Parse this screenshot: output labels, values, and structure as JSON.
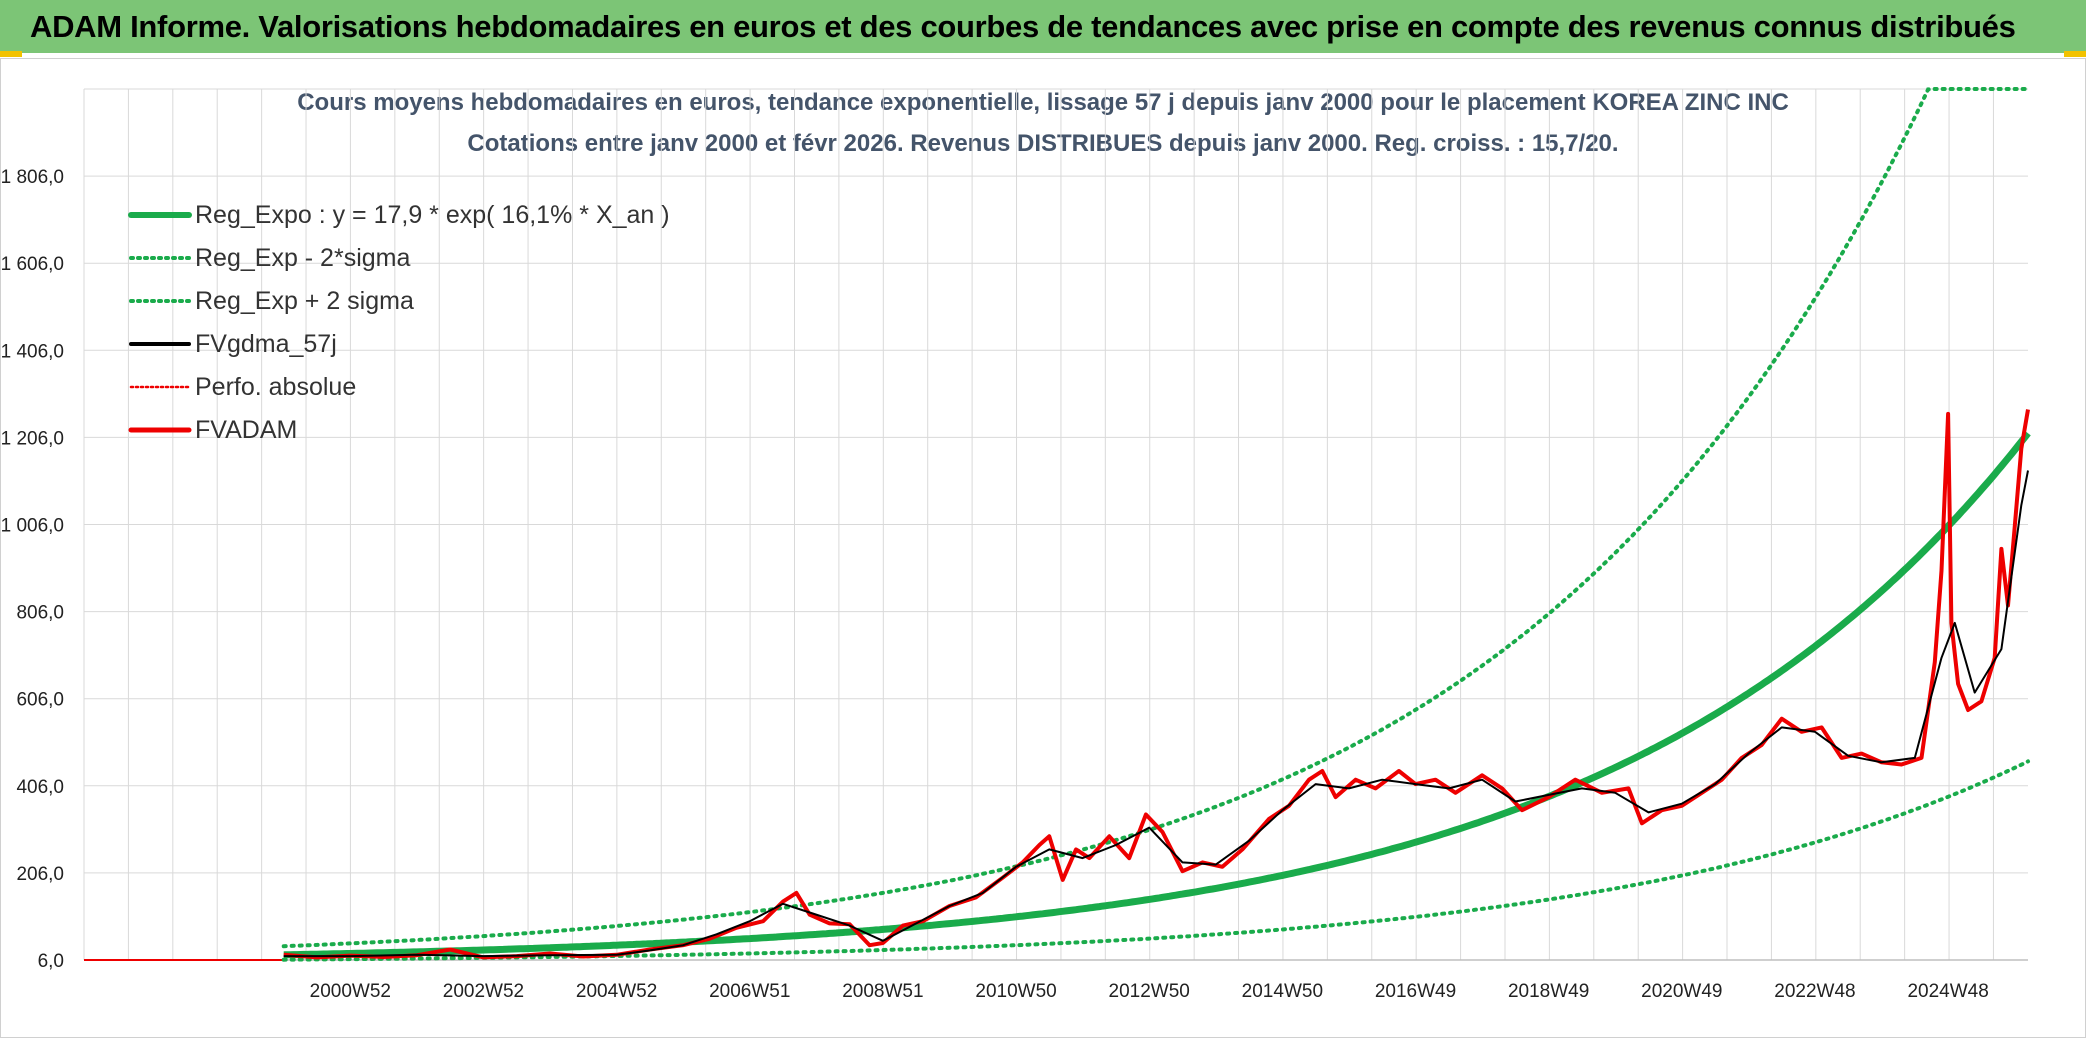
{
  "header": {
    "title": "ADAM Informe. Valorisations hebdomadaires en euros et des courbes de tendances avec prise en compte des revenus connus distribués"
  },
  "colors": {
    "header_bg": "#7cc576",
    "trend_green": "#1aab4b",
    "price_red": "#ee0000",
    "ma_black": "#000000",
    "grid": "#d9d9d9"
  },
  "chart_data": {
    "type": "line",
    "title_lines": [
      "Cours moyens hebdomadaires en euros, tendance exponentielle, lissage 57 j depuis janv 2000 pour le placement KOREA ZINC INC",
      "Cotations entre janv 2000 et févr 2026. Revenus DISTRIBUES depuis janv 2000. Reg. croiss. : 15,7/20."
    ],
    "x_range": [
      1997.0,
      2026.2
    ],
    "y_range": [
      6,
      2006
    ],
    "y_ticks": [
      "6,0",
      "206,0",
      "406,0",
      "606,0",
      "806,0",
      "1 006,0",
      "1 206,0",
      "1 406,0",
      "1 606,0",
      "1 806,0"
    ],
    "y_tick_values": [
      6,
      206,
      406,
      606,
      806,
      1006,
      1206,
      1406,
      1606,
      1806
    ],
    "x_ticks": [
      "2000W52",
      "2002W52",
      "2004W52",
      "2006W51",
      "2008W51",
      "2010W50",
      "2012W50",
      "2014W50",
      "2016W49",
      "2018W49",
      "2020W49",
      "2022W48",
      "2024W48"
    ],
    "x_tick_years": [
      2001.0,
      2003.0,
      2005.0,
      2007.0,
      2009.0,
      2011.0,
      2013.0,
      2015.0,
      2017.0,
      2019.0,
      2021.0,
      2023.0,
      2025.0
    ],
    "grid": true,
    "legend_position": "top-left",
    "legend": [
      {
        "label": "Reg_Expo : y = 17,9 * exp( 16,1% *  X_an )",
        "style": "thick-green"
      },
      {
        "label": "Reg_Exp - 2*sigma",
        "style": "dotted-green"
      },
      {
        "label": "Reg_Exp + 2 sigma",
        "style": "dotted-green"
      },
      {
        "label": "FVgdma_57j",
        "style": "black"
      },
      {
        "label": "Perfo. absolue",
        "style": "dotted-red"
      },
      {
        "label": "FVADAM",
        "style": "thick-red"
      }
    ],
    "regression": {
      "a": 17.9,
      "b": 0.161,
      "x_start": 2000.0
    },
    "band_lower_factor": 0.38,
    "band_upper_factor": 2.1,
    "trend_start": 2000.0,
    "flat_line": {
      "x": [
        1997.0,
        2000.0
      ],
      "y": [
        6,
        6
      ]
    },
    "fvadam_points": [
      [
        2000.0,
        18
      ],
      [
        2000.5,
        12
      ],
      [
        2001.0,
        16
      ],
      [
        2001.5,
        13
      ],
      [
        2002.0,
        17
      ],
      [
        2002.5,
        30
      ],
      [
        2003.0,
        12
      ],
      [
        2003.5,
        15
      ],
      [
        2004.0,
        21
      ],
      [
        2004.5,
        14
      ],
      [
        2005.0,
        18
      ],
      [
        2005.5,
        30
      ],
      [
        2006.0,
        40
      ],
      [
        2006.4,
        55
      ],
      [
        2006.8,
        80
      ],
      [
        2007.2,
        95
      ],
      [
        2007.5,
        140
      ],
      [
        2007.7,
        160
      ],
      [
        2007.9,
        110
      ],
      [
        2008.2,
        90
      ],
      [
        2008.5,
        88
      ],
      [
        2008.8,
        40
      ],
      [
        2009.0,
        45
      ],
      [
        2009.3,
        85
      ],
      [
        2009.6,
        95
      ],
      [
        2010.0,
        130
      ],
      [
        2010.4,
        150
      ],
      [
        2010.8,
        195
      ],
      [
        2011.1,
        230
      ],
      [
        2011.35,
        270
      ],
      [
        2011.5,
        290
      ],
      [
        2011.7,
        190
      ],
      [
        2011.9,
        260
      ],
      [
        2012.1,
        240
      ],
      [
        2012.4,
        290
      ],
      [
        2012.7,
        240
      ],
      [
        2012.95,
        340
      ],
      [
        2013.2,
        300
      ],
      [
        2013.5,
        210
      ],
      [
        2013.8,
        230
      ],
      [
        2014.1,
        220
      ],
      [
        2014.4,
        260
      ],
      [
        2014.8,
        330
      ],
      [
        2015.1,
        360
      ],
      [
        2015.4,
        420
      ],
      [
        2015.6,
        440
      ],
      [
        2015.8,
        380
      ],
      [
        2016.1,
        420
      ],
      [
        2016.4,
        400
      ],
      [
        2016.75,
        440
      ],
      [
        2017.0,
        410
      ],
      [
        2017.3,
        420
      ],
      [
        2017.6,
        390
      ],
      [
        2018.0,
        430
      ],
      [
        2018.3,
        400
      ],
      [
        2018.6,
        350
      ],
      [
        2019.0,
        380
      ],
      [
        2019.4,
        420
      ],
      [
        2019.8,
        390
      ],
      [
        2020.2,
        400
      ],
      [
        2020.4,
        320
      ],
      [
        2020.7,
        350
      ],
      [
        2021.0,
        360
      ],
      [
        2021.3,
        390
      ],
      [
        2021.6,
        420
      ],
      [
        2021.9,
        470
      ],
      [
        2022.2,
        500
      ],
      [
        2022.5,
        560
      ],
      [
        2022.8,
        530
      ],
      [
        2023.1,
        540
      ],
      [
        2023.4,
        470
      ],
      [
        2023.7,
        480
      ],
      [
        2024.0,
        460
      ],
      [
        2024.3,
        455
      ],
      [
        2024.6,
        470
      ],
      [
        2024.8,
        690
      ],
      [
        2024.9,
        900
      ],
      [
        2025.0,
        1260
      ],
      [
        2025.05,
        780
      ],
      [
        2025.15,
        640
      ],
      [
        2025.3,
        580
      ],
      [
        2025.5,
        600
      ],
      [
        2025.7,
        700
      ],
      [
        2025.8,
        950
      ],
      [
        2025.9,
        820
      ],
      [
        2026.0,
        1000
      ],
      [
        2026.1,
        1180
      ],
      [
        2026.2,
        1270
      ]
    ],
    "ma_points": [
      [
        2000.0,
        15
      ],
      [
        2001.0,
        15
      ],
      [
        2002.0,
        18
      ],
      [
        2003.0,
        15
      ],
      [
        2004.0,
        17
      ],
      [
        2005.0,
        18
      ],
      [
        2005.5,
        28
      ],
      [
        2006.0,
        40
      ],
      [
        2006.5,
        65
      ],
      [
        2007.0,
        95
      ],
      [
        2007.5,
        135
      ],
      [
        2007.9,
        115
      ],
      [
        2008.5,
        85
      ],
      [
        2009.0,
        50
      ],
      [
        2009.5,
        90
      ],
      [
        2010.0,
        130
      ],
      [
        2010.5,
        160
      ],
      [
        2011.0,
        220
      ],
      [
        2011.5,
        260
      ],
      [
        2012.0,
        240
      ],
      [
        2012.5,
        270
      ],
      [
        2013.0,
        310
      ],
      [
        2013.5,
        230
      ],
      [
        2014.0,
        225
      ],
      [
        2014.5,
        280
      ],
      [
        2015.0,
        350
      ],
      [
        2015.5,
        410
      ],
      [
        2016.0,
        400
      ],
      [
        2016.5,
        420
      ],
      [
        2017.0,
        410
      ],
      [
        2017.5,
        400
      ],
      [
        2018.0,
        420
      ],
      [
        2018.5,
        370
      ],
      [
        2019.0,
        385
      ],
      [
        2019.5,
        400
      ],
      [
        2020.0,
        390
      ],
      [
        2020.5,
        345
      ],
      [
        2021.0,
        365
      ],
      [
        2021.5,
        410
      ],
      [
        2022.0,
        480
      ],
      [
        2022.5,
        540
      ],
      [
        2023.0,
        530
      ],
      [
        2023.5,
        475
      ],
      [
        2024.0,
        460
      ],
      [
        2024.5,
        470
      ],
      [
        2024.9,
        700
      ],
      [
        2025.1,
        780
      ],
      [
        2025.4,
        620
      ],
      [
        2025.8,
        720
      ],
      [
        2026.1,
        1050
      ],
      [
        2026.2,
        1130
      ]
    ]
  }
}
